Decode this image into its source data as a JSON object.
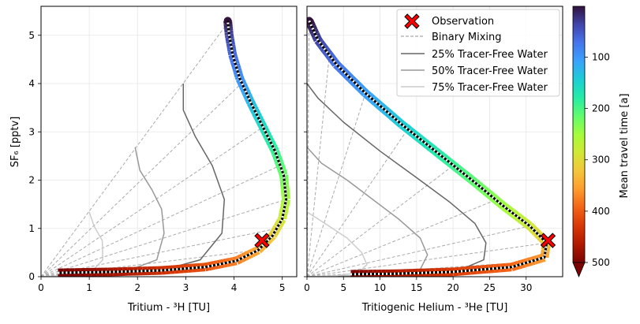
{
  "chart_data": [
    {
      "type": "line",
      "panel": "left",
      "xlabel": "Tritium - ³H [TU]",
      "ylabel": "SF₆ [pptv]",
      "xlim": [
        0,
        5.3
      ],
      "ylim": [
        0,
        5.6
      ],
      "xticks": [
        "0",
        "1",
        "2",
        "3",
        "4",
        "5"
      ],
      "yticks": [
        "0",
        "1",
        "2",
        "3",
        "4",
        "5"
      ],
      "grid": true,
      "observation": {
        "x": 4.58,
        "y": 0.75
      },
      "model_curve": [
        [
          0.35,
          0.08
        ],
        [
          1.5,
          0.1
        ],
        [
          2.5,
          0.13
        ],
        [
          3.4,
          0.2
        ],
        [
          4.05,
          0.33
        ],
        [
          4.5,
          0.55
        ],
        [
          4.8,
          0.85
        ],
        [
          5.0,
          1.2
        ],
        [
          5.08,
          1.6
        ],
        [
          5.03,
          2.1
        ],
        [
          4.85,
          2.6
        ],
        [
          4.6,
          3.1
        ],
        [
          4.35,
          3.6
        ],
        [
          4.12,
          4.1
        ],
        [
          3.97,
          4.6
        ],
        [
          3.9,
          5.0
        ],
        [
          3.87,
          5.3
        ]
      ],
      "tracer_free_25": [
        [
          0.0,
          0.0
        ],
        [
          2.2,
          0.05
        ],
        [
          3.3,
          0.35
        ],
        [
          3.75,
          0.9
        ],
        [
          3.8,
          1.6
        ],
        [
          3.55,
          2.3
        ],
        [
          3.2,
          2.9
        ],
        [
          2.95,
          3.45
        ],
        [
          2.95,
          4.0
        ]
      ],
      "tracer_free_50": [
        [
          0.0,
          0.0
        ],
        [
          1.6,
          0.05
        ],
        [
          2.4,
          0.35
        ],
        [
          2.55,
          0.9
        ],
        [
          2.5,
          1.4
        ],
        [
          2.3,
          1.8
        ],
        [
          2.05,
          2.2
        ],
        [
          1.95,
          2.68
        ]
      ],
      "tracer_free_75": [
        [
          0.0,
          0.0
        ],
        [
          1.0,
          0.05
        ],
        [
          1.28,
          0.35
        ],
        [
          1.27,
          0.75
        ],
        [
          1.1,
          1.05
        ],
        [
          1.0,
          1.34
        ]
      ],
      "mixing_endpoints": [
        [
          3.9,
          5.3
        ],
        [
          4.15,
          4.0
        ],
        [
          4.6,
          3.1
        ],
        [
          4.95,
          2.3
        ],
        [
          5.08,
          1.6
        ],
        [
          4.9,
          1.0
        ],
        [
          4.5,
          0.55
        ],
        [
          4.0,
          0.3
        ]
      ]
    },
    {
      "type": "line",
      "panel": "right",
      "xlabel": "Tritiogenic Helium - ³He [TU]",
      "xlim": [
        0,
        35
      ],
      "ylim": [
        0,
        5.6
      ],
      "xticks": [
        "0",
        "5",
        "10",
        "15",
        "20",
        "25",
        "30"
      ],
      "grid": true,
      "observation": {
        "x": 33.0,
        "y": 0.75
      },
      "model_curve": [
        [
          0.3,
          5.3
        ],
        [
          1.5,
          4.9
        ],
        [
          4.0,
          4.4
        ],
        [
          8.0,
          3.8
        ],
        [
          13.0,
          3.15
        ],
        [
          18.0,
          2.55
        ],
        [
          23.0,
          1.95
        ],
        [
          27.0,
          1.45
        ],
        [
          30.5,
          1.05
        ],
        [
          32.8,
          0.7
        ],
        [
          32.5,
          0.4
        ],
        [
          28.0,
          0.2
        ],
        [
          20.0,
          0.1
        ],
        [
          12.0,
          0.06
        ],
        [
          6.0,
          0.05
        ]
      ],
      "tracer_free_25": [
        [
          0.0,
          4.0
        ],
        [
          1.5,
          3.7
        ],
        [
          5.0,
          3.2
        ],
        [
          10.0,
          2.6
        ],
        [
          15.0,
          2.05
        ],
        [
          19.5,
          1.55
        ],
        [
          23.0,
          1.1
        ],
        [
          24.5,
          0.7
        ],
        [
          24.2,
          0.35
        ],
        [
          20.0,
          0.08
        ],
        [
          14.0,
          0.02
        ],
        [
          0.0,
          0.0
        ]
      ],
      "tracer_free_50": [
        [
          0.0,
          2.68
        ],
        [
          2.0,
          2.35
        ],
        [
          5.5,
          2.0
        ],
        [
          9.0,
          1.6
        ],
        [
          12.5,
          1.2
        ],
        [
          15.5,
          0.8
        ],
        [
          16.5,
          0.45
        ],
        [
          15.5,
          0.15
        ],
        [
          10.0,
          0.03
        ],
        [
          0.0,
          0.0
        ]
      ],
      "tracer_free_75": [
        [
          0.0,
          1.34
        ],
        [
          2.5,
          1.1
        ],
        [
          5.5,
          0.8
        ],
        [
          7.5,
          0.5
        ],
        [
          8.2,
          0.25
        ],
        [
          7.0,
          0.08
        ],
        [
          4.0,
          0.02
        ],
        [
          0.0,
          0.0
        ]
      ],
      "mixing_endpoints": [
        [
          0.3,
          5.3
        ],
        [
          3.0,
          4.5
        ],
        [
          8.0,
          3.8
        ],
        [
          14.0,
          3.1
        ],
        [
          20.0,
          2.3
        ],
        [
          26.0,
          1.6
        ],
        [
          30.5,
          1.05
        ],
        [
          32.8,
          0.7
        ],
        [
          30.0,
          0.3
        ]
      ]
    }
  ],
  "legend": {
    "entries": [
      "Observation",
      "Binary Mixing",
      "25% Tracer-Free Water",
      "50% Tracer-Free Water",
      "75% Tracer-Free Water"
    ],
    "placement": "top-right"
  },
  "colorbar": {
    "label": "Mean travel time [a]",
    "range": [
      1,
      500
    ],
    "ticks": [
      "100",
      "200",
      "300",
      "400",
      "500"
    ],
    "colors": [
      "#30123b",
      "#4145ab",
      "#4675ed",
      "#39a2fc",
      "#1bcfd4",
      "#24eca6",
      "#61fc6c",
      "#a4fc3b",
      "#d1e834",
      "#f3c63a",
      "#fe9b2d",
      "#f36315",
      "#d93806",
      "#b11901",
      "#7a0402"
    ]
  },
  "colors": {
    "observation": "#ff0000",
    "mixing": "#aaaaaa",
    "tf25": "#666666",
    "tf50": "#999999",
    "tf75": "#cccccc",
    "grid": "#e6e6e6"
  }
}
